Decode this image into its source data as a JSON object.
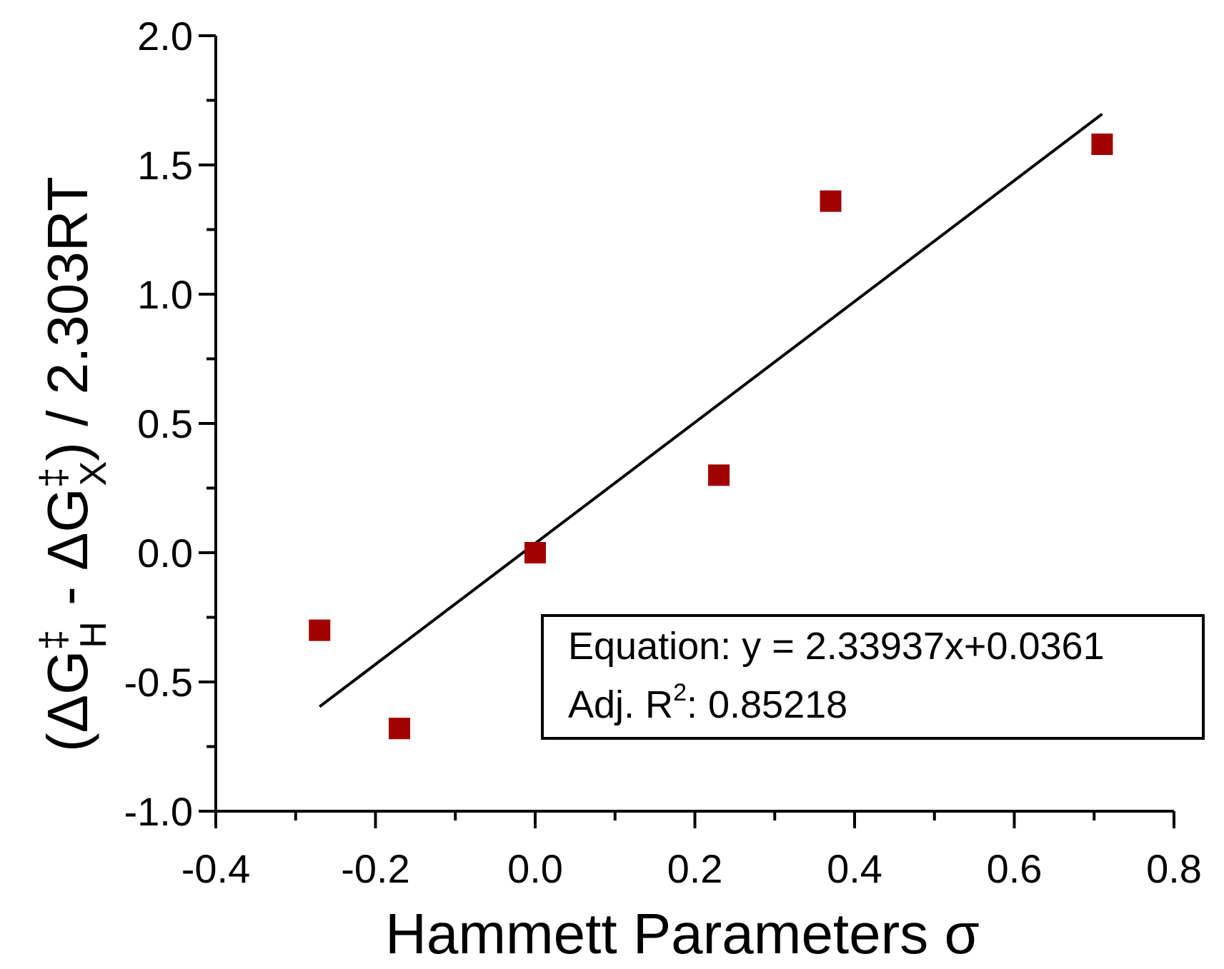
{
  "chart_data": {
    "type": "scatter",
    "xlabel": "Hammett Parameters σ",
    "ylabel": {
      "open": "(ΔG",
      "sup1": "‡",
      "sub1": "H",
      "mid": " - ΔG",
      "sup2": "‡",
      "sub2": "X",
      "close": ") / 2.303RT"
    },
    "xlim": [
      -0.4,
      0.8
    ],
    "ylim": [
      -1.0,
      2.0
    ],
    "x_ticks": [
      -0.4,
      -0.2,
      0.0,
      0.2,
      0.4,
      0.6,
      0.8
    ],
    "x_tick_labels": [
      "-0.4",
      "-0.2",
      "0.0",
      "0.2",
      "0.4",
      "0.6",
      "0.8"
    ],
    "y_ticks": [
      -1.0,
      -0.5,
      0.0,
      0.5,
      1.0,
      1.5,
      2.0
    ],
    "y_tick_labels": [
      "-1.0",
      "-0.5",
      "0.0",
      "0.5",
      "1.0",
      "1.5",
      "2.0"
    ],
    "x_minor_step": 0.1,
    "y_minor_step": 0.25,
    "grid": false,
    "points": [
      {
        "x": -0.27,
        "y": -0.3
      },
      {
        "x": -0.17,
        "y": -0.68
      },
      {
        "x": 0.0,
        "y": 0.0
      },
      {
        "x": 0.23,
        "y": 0.3
      },
      {
        "x": 0.37,
        "y": 1.36
      },
      {
        "x": 0.71,
        "y": 1.58
      }
    ],
    "marker_color": "#a00000",
    "fit": {
      "slope": 2.33937,
      "intercept": 0.0361,
      "x_range": [
        -0.27,
        0.71
      ],
      "color": "#000000"
    },
    "annotation": {
      "equation_label": "Equation: y = 2.33937x+0.0361",
      "r2_prefix": "Adj. R",
      "r2_sup": "2",
      "r2_suffix": ": 0.85218",
      "placement": "bottom-right"
    }
  }
}
